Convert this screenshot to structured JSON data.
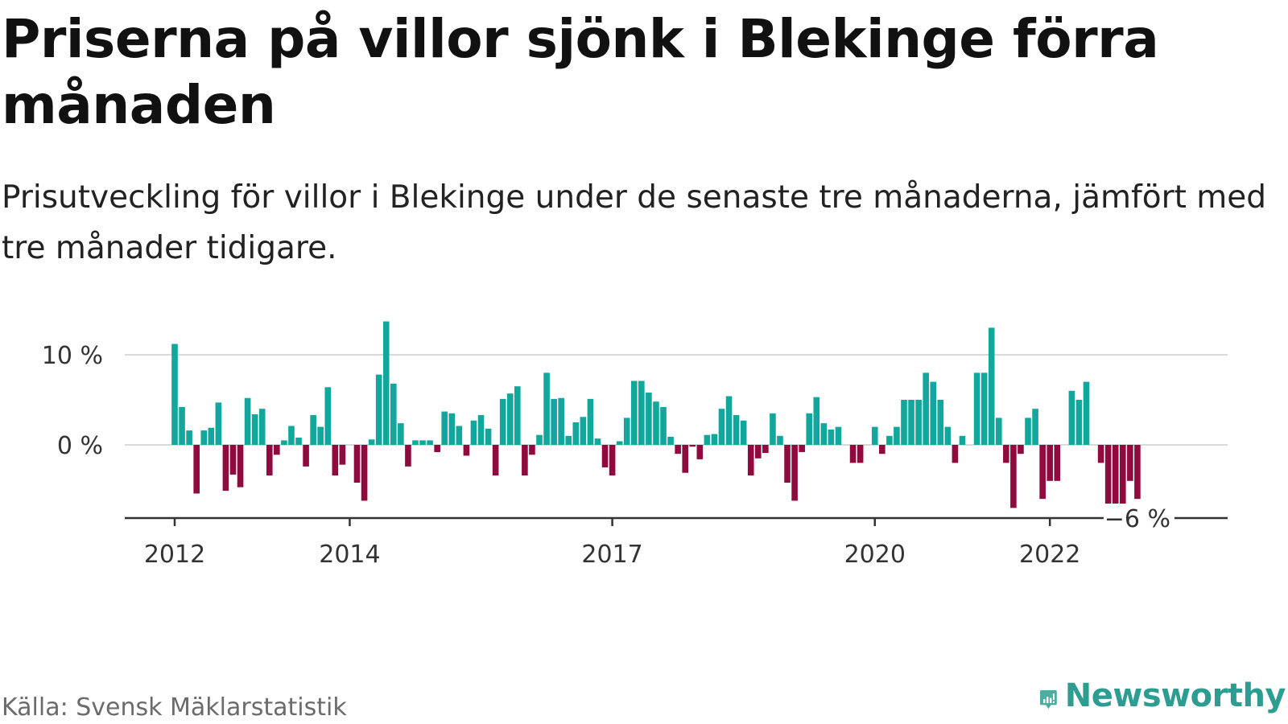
{
  "title": "Priserna på villor sjönk i Blekinge förra månaden",
  "subtitle": "Prisutveckling för villor i Blekinge under de senaste tre månaderna, jämfört med tre månader tidigare.",
  "source": "Källa: Svensk Mäklarstatistik",
  "brand": "Newsworthy",
  "colors": {
    "positive": "#12a79d",
    "negative": "#8f0b3f",
    "grid": "#d9d9d9",
    "axis": "#333333",
    "brand": "#2d9d92"
  },
  "chart_data": {
    "type": "bar",
    "title": "Priserna på villor sjönk i Blekinge förra månaden",
    "xlabel": "",
    "ylabel": "",
    "unit": "%",
    "ylim": [
      -8,
      14
    ],
    "grid": true,
    "y_ticks": [
      {
        "value": 0,
        "label": "0 %"
      },
      {
        "value": 10,
        "label": "10 %"
      }
    ],
    "x_ticks": [
      {
        "date": "2012-01",
        "label": "2012"
      },
      {
        "date": "2014-01",
        "label": "2014"
      },
      {
        "date": "2017-01",
        "label": "2017"
      },
      {
        "date": "2020-01",
        "label": "2020"
      },
      {
        "date": "2022-01",
        "label": "2022"
      }
    ],
    "start": "2012-01",
    "end": "2023-02",
    "last_value_label": "−6 %",
    "values": [
      11.2,
      4.2,
      1.6,
      -5.4,
      1.6,
      1.9,
      4.7,
      -5.1,
      -3.3,
      -4.7,
      5.2,
      3.4,
      4.0,
      -3.4,
      -1.1,
      0.5,
      2.1,
      0.8,
      -2.4,
      3.3,
      2.0,
      6.4,
      -3.4,
      -2.2,
      0.0,
      -4.2,
      -6.2,
      0.6,
      7.8,
      13.7,
      6.8,
      2.4,
      -2.4,
      0.5,
      0.5,
      0.5,
      -0.8,
      3.7,
      3.5,
      2.1,
      -1.2,
      2.7,
      3.3,
      1.8,
      -3.4,
      5.1,
      5.7,
      6.5,
      -3.4,
      -1.1,
      1.1,
      8.0,
      5.1,
      5.2,
      1.0,
      2.5,
      3.1,
      5.1,
      0.7,
      -2.5,
      -3.4,
      0.4,
      3.0,
      7.1,
      7.1,
      5.8,
      4.8,
      4.2,
      0.9,
      -1.0,
      -3.1,
      -0.2,
      -1.6,
      1.1,
      1.2,
      4.0,
      5.4,
      3.3,
      2.7,
      -3.4,
      -1.5,
      -0.9,
      3.5,
      1.0,
      -4.2,
      -6.2,
      -0.8,
      3.5,
      5.3,
      2.4,
      1.7,
      2.0,
      0.0,
      -2.0,
      -2.0,
      0.0,
      2.0,
      -1.0,
      1.0,
      2.0,
      5.0,
      5.0,
      5.0,
      8.0,
      7.0,
      5.0,
      2.0,
      -2.0,
      1.0,
      0.0,
      8.0,
      8.0,
      13.0,
      3.0,
      -2.0,
      -7.0,
      -1.0,
      3.0,
      4.0,
      -6.0,
      -4.0,
      -4.0,
      0.0,
      6.0,
      5.0,
      7.0,
      0.0,
      -2.0,
      -7.0,
      -7.0,
      -7.0,
      -4.0,
      -6.0
    ]
  }
}
